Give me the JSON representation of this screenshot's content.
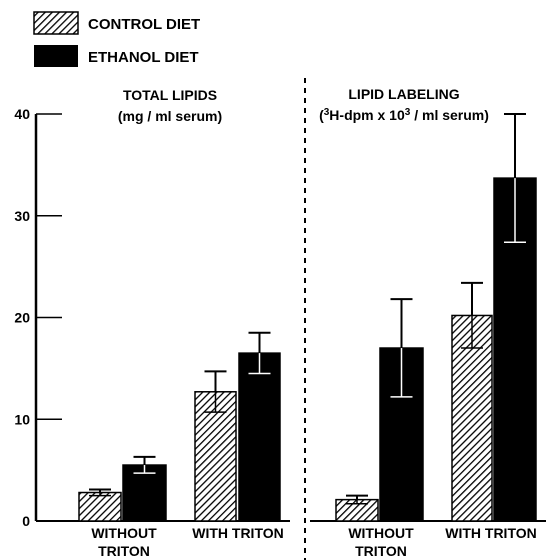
{
  "chart_data": {
    "type": "bar",
    "legend": {
      "placement": "top-left",
      "entries": [
        {
          "label": "CONTROL DIET",
          "pattern": "hatched"
        },
        {
          "label": "ETHANOL DIET",
          "pattern": "solid",
          "color": "#000000"
        }
      ]
    },
    "y_axis": {
      "ylim": [
        0,
        40
      ],
      "ticks": [
        "0",
        "10",
        "20",
        "30",
        "40"
      ]
    },
    "panels": [
      {
        "title_line1": "TOTAL LIPIDS",
        "title_line2": "(mg / ml serum)",
        "categories": [
          {
            "label_line1": "WITHOUT",
            "label_line2": "TRITON"
          },
          {
            "label_line1": "WITH TRITON",
            "label_line2": ""
          }
        ],
        "series": [
          {
            "name": "CONTROL DIET",
            "values": [
              2.8,
              12.7
            ],
            "errors": [
              0.3,
              2.0
            ]
          },
          {
            "name": "ETHANOL DIET",
            "values": [
              5.5,
              16.5
            ],
            "errors": [
              0.8,
              2.0
            ]
          }
        ]
      },
      {
        "title_line1": "LIPID LABELING",
        "title_sup1": "3",
        "title_mid": "H-dpm x 10",
        "title_sup2": "3",
        "title_end": " / ml serum)",
        "categories": [
          {
            "label_line1": "WITHOUT",
            "label_line2": "TRITON"
          },
          {
            "label_line1": "WITH TRITON",
            "label_line2": ""
          }
        ],
        "series": [
          {
            "name": "CONTROL DIET",
            "values": [
              2.1,
              20.2
            ],
            "errors": [
              0.4,
              3.2
            ]
          },
          {
            "name": "ETHANOL DIET",
            "values": [
              17.0,
              33.7
            ],
            "errors": [
              4.8,
              6.3
            ]
          }
        ]
      }
    ]
  }
}
